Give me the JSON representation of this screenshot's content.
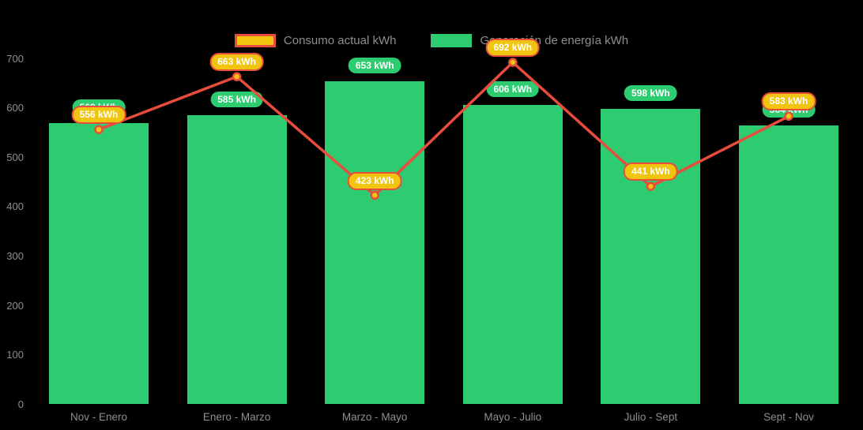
{
  "chart_data": {
    "type": "bar+line",
    "title": "",
    "xlabel": "",
    "ylabel": "",
    "unit": "kWh",
    "categories": [
      "Nov - Enero",
      "Enero - Marzo",
      "Marzo - Mayo",
      "Mayo - Julio",
      "Julio - Sept",
      "Sept - Nov"
    ],
    "series": [
      {
        "name": "Generación de energía kWh",
        "type": "bar",
        "color": "#2ecc71",
        "values": [
          569,
          585,
          653,
          606,
          598,
          564
        ],
        "labels": [
          "569 kWh",
          "585 kWh",
          "653 kWh",
          "606 kWh",
          "598 kWh",
          "564 kWh"
        ],
        "label_bg": "#2ecc71",
        "label_text_color": "#ffffff"
      },
      {
        "name": "Consumo actual kWh",
        "type": "line",
        "color": "#e74c3c",
        "point_fill": "#f1c40f",
        "point_border": "#e74c3c",
        "values": [
          556,
          663,
          423,
          692,
          441,
          583
        ],
        "labels": [
          "556 kWh",
          "663 kWh",
          "423 kWh",
          "692 kWh",
          "441 kWh",
          "583 kWh"
        ],
        "label_bg": "#f1c40f",
        "label_border": "#e74c3c",
        "label_text_color": "#ffffff"
      }
    ],
    "ylim": [
      0,
      700
    ],
    "yticks": [
      0,
      100,
      200,
      300,
      400,
      500,
      600,
      700
    ],
    "grid": false,
    "legend_position": "top",
    "background": "#000000",
    "axis_text_color": "#8e8e8e"
  },
  "legend": {
    "items": [
      {
        "label": "Consumo actual kWh",
        "swatch_fill": "#f1c40f",
        "swatch_border": "#e74c3c",
        "key": "consumo"
      },
      {
        "label": "Generación de energía kWh",
        "swatch_fill": "#2ecc71",
        "swatch_border": "#2ecc71",
        "key": "generacion"
      }
    ]
  }
}
